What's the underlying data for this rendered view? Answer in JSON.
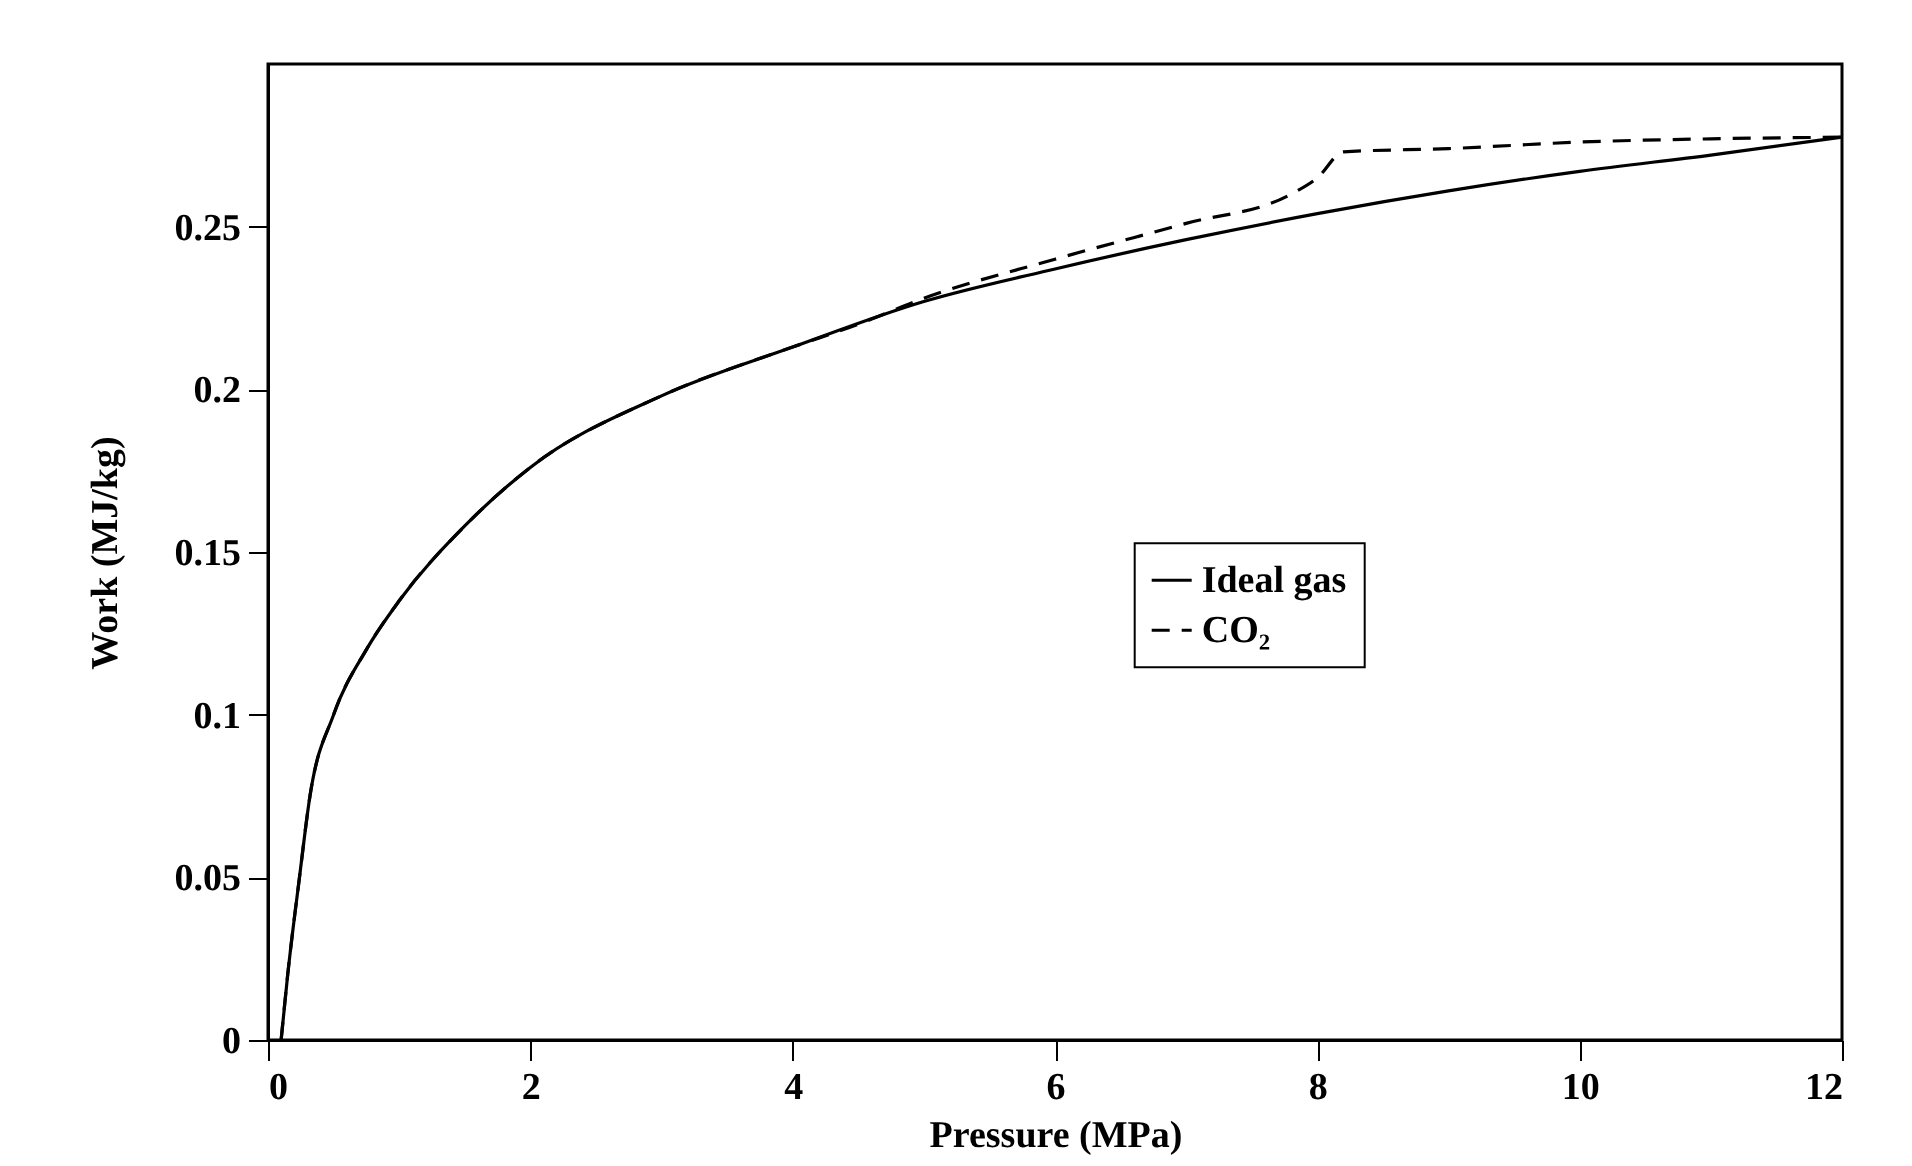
{
  "chart_data": {
    "type": "line",
    "xlabel": "Pressure (MPa)",
    "ylabel": "Work (MJ/kg)",
    "xlim": [
      0,
      12
    ],
    "xticks": [
      0,
      2,
      4,
      6,
      8,
      10,
      12
    ],
    "ylim": [
      0,
      0.3
    ],
    "yticks": [
      0,
      0.05,
      0.1,
      0.15,
      0.2,
      0.25
    ],
    "legend": "right",
    "grid": false,
    "series": [
      {
        "name": "Ideal gas",
        "color": "#000000",
        "line_style": "solid",
        "x": [
          0.1,
          0.15,
          0.24,
          0.32,
          0.5,
          0.75,
          1,
          1.5,
          2,
          3,
          4,
          5,
          6,
          7,
          8,
          9,
          10,
          11,
          12
        ],
        "values": [
          0,
          0.02,
          0.05,
          0.075,
          0.1,
          0.12,
          0.135,
          0.158,
          0.176,
          0.198,
          0.213,
          0.227,
          0.237,
          0.246,
          0.254,
          0.261,
          0.267,
          0.272,
          0.2775
        ]
      },
      {
        "name": "CO₂",
        "color": "#000000",
        "line_style": "dashed",
        "x": [
          0.1,
          0.15,
          0.24,
          0.32,
          0.5,
          0.75,
          1,
          1.5,
          2,
          3,
          4,
          4.5,
          5,
          6,
          7,
          7.8,
          8,
          8.2,
          9,
          10,
          11,
          12
        ],
        "values": [
          0,
          0.02,
          0.05,
          0.075,
          0.1,
          0.12,
          0.135,
          0.158,
          0.176,
          0.198,
          0.213,
          0.22,
          0.228,
          0.24,
          0.251,
          0.26,
          0.265,
          0.273,
          0.274,
          0.276,
          0.277,
          0.2775
        ]
      }
    ]
  }
}
